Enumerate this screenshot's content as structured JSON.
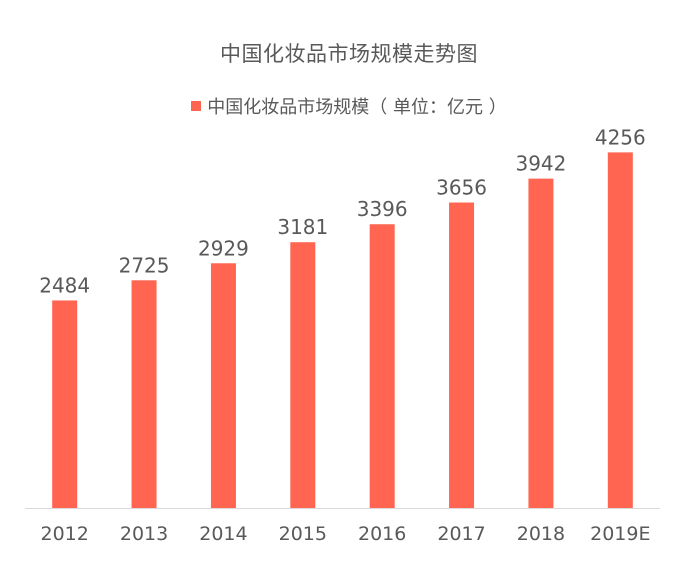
{
  "chart_data": {
    "type": "bar",
    "title": "中国化妆品市场规模走势图",
    "categories": [
      "2012",
      "2013",
      "2014",
      "2015",
      "2016",
      "2017",
      "2018",
      "2019E"
    ],
    "series": [
      {
        "name": "中国化妆品市场规模（ 单位：亿元 ）",
        "values": [
          2484,
          2725,
          2929,
          3181,
          3396,
          3656,
          3942,
          4256
        ],
        "color": "#ff6550"
      }
    ],
    "ylim": [
      0,
      4500
    ],
    "grid": false,
    "legend_position": "top",
    "data_labels": true
  }
}
